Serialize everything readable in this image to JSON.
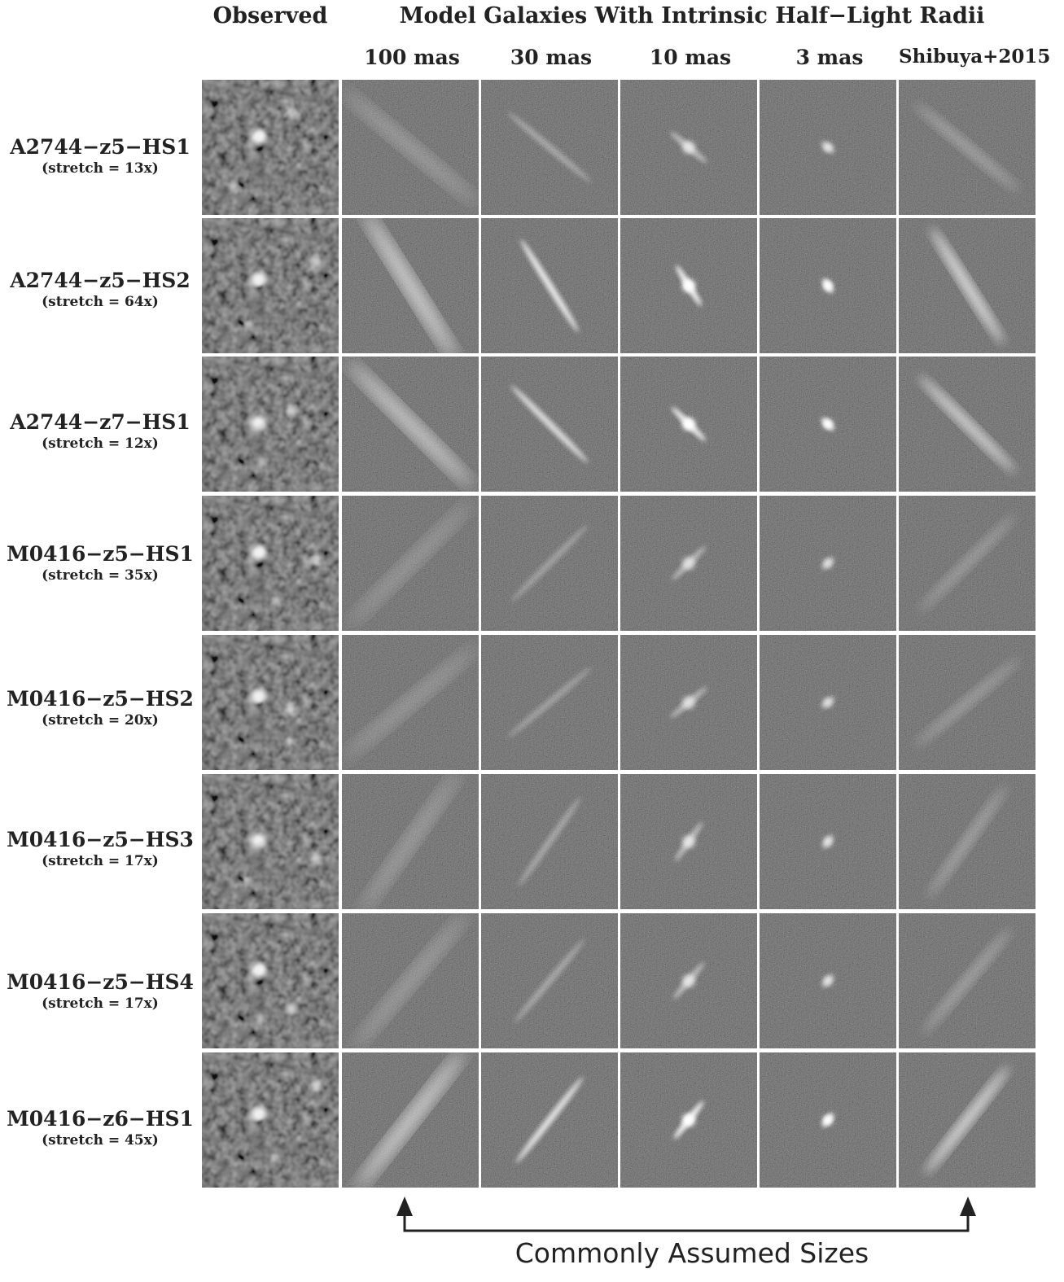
{
  "header": {
    "observed": "Observed",
    "model_title": "Model Galaxies With Intrinsic Half−Light Radii",
    "columns": [
      "100 mas",
      "30 mas",
      "10 mas",
      "3 mas",
      "Shibuya+2015"
    ]
  },
  "rows": [
    {
      "name": "A2744−z5−HS1",
      "stretch": "(stretch = 13x)"
    },
    {
      "name": "A2744−z5−HS2",
      "stretch": "(stretch = 64x)"
    },
    {
      "name": "A2744−z7−HS1",
      "stretch": "(stretch = 12x)"
    },
    {
      "name": "M0416−z5−HS1",
      "stretch": "(stretch = 35x)"
    },
    {
      "name": "M0416−z5−HS2",
      "stretch": "(stretch = 20x)"
    },
    {
      "name": "M0416−z5−HS3",
      "stretch": "(stretch = 17x)"
    },
    {
      "name": "M0416−z5−HS4",
      "stretch": "(stretch = 17x)"
    },
    {
      "name": "M0416−z6−HS1",
      "stretch": "(stretch = 45x)"
    }
  ],
  "footer": {
    "label": "Commonly Assumed Sizes"
  }
}
